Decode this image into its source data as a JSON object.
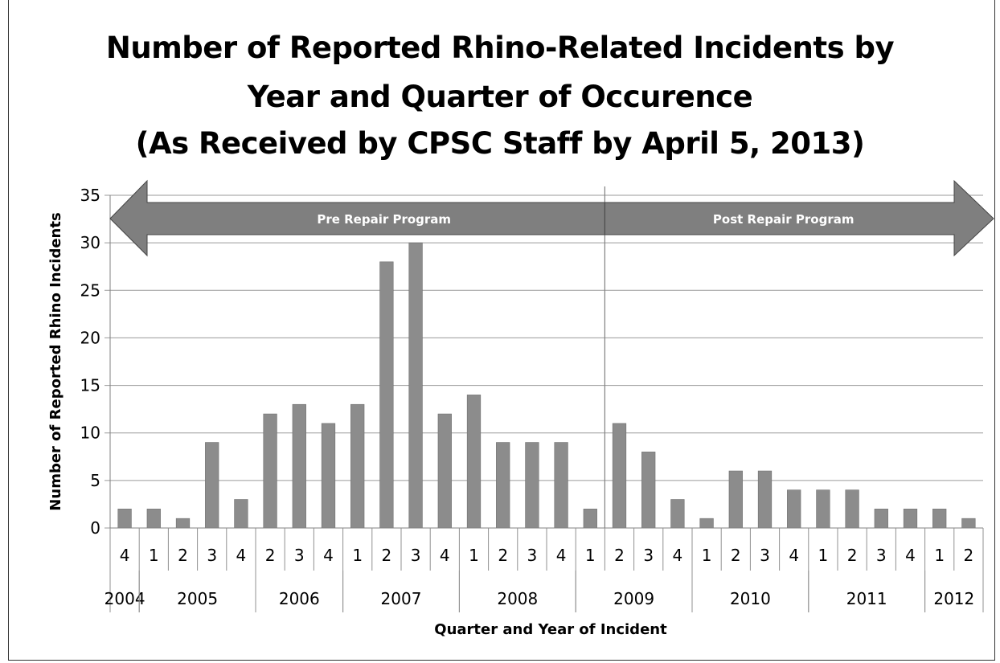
{
  "chart_data": {
    "type": "bar",
    "title": [
      "Number of Reported Rhino-Related Incidents by",
      "Year and Quarter of Occurence",
      "(As Received by CPSC Staff by April 5, 2013)"
    ],
    "xlabel": "Quarter and Year of Incident",
    "ylabel": "Number of Reported Rhino Incidents",
    "ylim": [
      0,
      35
    ],
    "yticks": [
      0,
      5,
      10,
      15,
      20,
      25,
      30,
      35
    ],
    "grid": true,
    "quarters": [
      "4",
      "1",
      "2",
      "3",
      "4",
      "2",
      "3",
      "4",
      "1",
      "2",
      "3",
      "4",
      "1",
      "2",
      "3",
      "4",
      "1",
      "2",
      "3",
      "4",
      "1",
      "2",
      "3",
      "4",
      "1",
      "2",
      "3",
      "4",
      "1",
      "2"
    ],
    "values": [
      2,
      2,
      1,
      9,
      3,
      12,
      13,
      11,
      13,
      28,
      30,
      12,
      14,
      9,
      9,
      9,
      2,
      11,
      8,
      3,
      1,
      6,
      6,
      4,
      4,
      4,
      2,
      2,
      2,
      1
    ],
    "years": [
      {
        "label": "2004",
        "start": 0,
        "count": 1
      },
      {
        "label": "2005",
        "start": 1,
        "count": 4
      },
      {
        "label": "2006",
        "start": 5,
        "count": 3
      },
      {
        "label": "2007",
        "start": 8,
        "count": 4
      },
      {
        "label": "2008",
        "start": 12,
        "count": 4
      },
      {
        "label": "2009",
        "start": 16,
        "count": 4
      },
      {
        "label": "2010",
        "start": 20,
        "count": 4
      },
      {
        "label": "2011",
        "start": 24,
        "count": 4
      },
      {
        "label": "2012",
        "start": 28,
        "count": 2
      }
    ],
    "annotations": [
      {
        "label": "Pre Repair Program",
        "direction": "left"
      },
      {
        "label": "Post Repair Program",
        "direction": "right"
      }
    ],
    "colors": {
      "bar": "#8c8c8c",
      "arrow": "#7f7f7f",
      "grid": "#9a9a9a"
    }
  }
}
